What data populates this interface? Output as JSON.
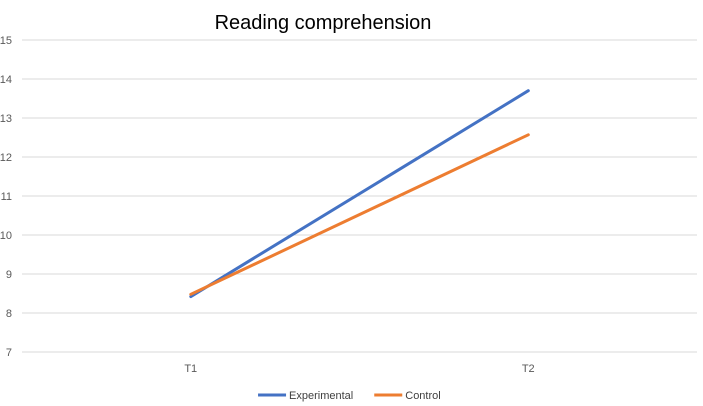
{
  "chart_data": {
    "type": "line",
    "title": "Reading comprehension",
    "xlabel": "",
    "ylabel": "",
    "categories": [
      "T1",
      "T2"
    ],
    "ylim": [
      7,
      15
    ],
    "y_ticks": [
      "7",
      "8",
      "9",
      "10",
      "11",
      "12",
      "13",
      "14",
      "15"
    ],
    "grid": "horizontal",
    "legend_position": "bottom",
    "series": [
      {
        "name": "Experimental",
        "values": [
          8.42,
          13.7
        ],
        "color": "#4472C4"
      },
      {
        "name": "Control",
        "values": [
          8.48,
          12.57
        ],
        "color": "#ED7D31"
      }
    ],
    "gridline_color": "#D9D9D9"
  }
}
